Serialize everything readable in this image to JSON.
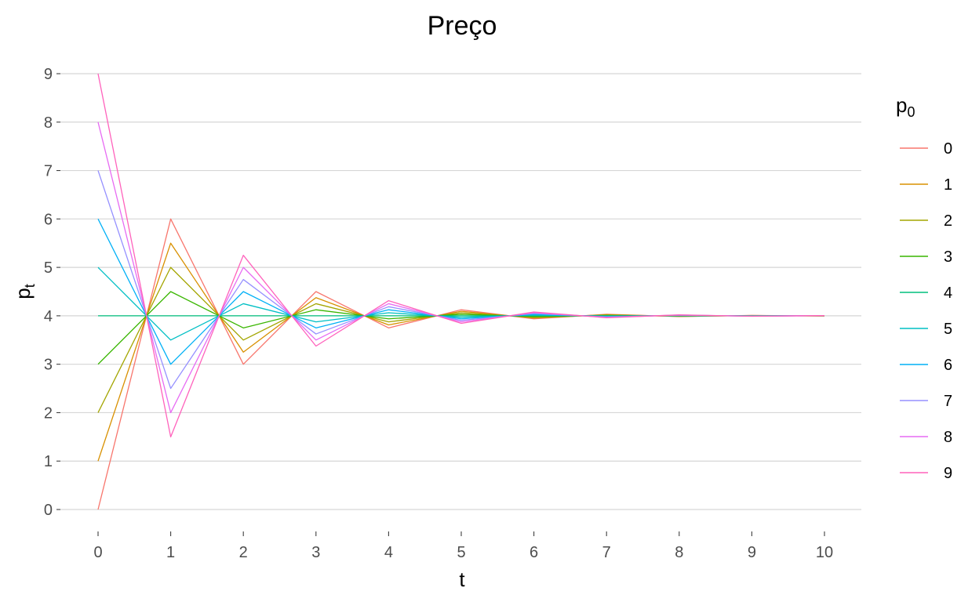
{
  "chart_data": {
    "type": "line",
    "title": "Preço",
    "xlabel": "t",
    "ylabel": {
      "main": "p",
      "sub": "t"
    },
    "xlim": [
      0,
      10
    ],
    "ylim": [
      0,
      9
    ],
    "x_ticks": [
      0,
      1,
      2,
      3,
      4,
      5,
      6,
      7,
      8,
      9,
      10
    ],
    "y_ticks": [
      0,
      1,
      2,
      3,
      4,
      5,
      6,
      7,
      8,
      9
    ],
    "grid": "horizontal-major",
    "legend": {
      "title": {
        "main": "p",
        "sub": "0"
      },
      "placement": "right"
    },
    "x": [
      0,
      1,
      2,
      3,
      4,
      5,
      6,
      7,
      8,
      9,
      10
    ],
    "series": [
      {
        "name": "0",
        "color": "#F8766D",
        "values": [
          0,
          6,
          3,
          4.5,
          3.75,
          4.125,
          3.9375,
          4.03125,
          3.984375,
          4.0078125,
          3.99609375
        ]
      },
      {
        "name": "1",
        "color": "#D89000",
        "values": [
          1,
          5.5,
          3.25,
          4.375,
          3.8125,
          4.09375,
          3.953125,
          4.0234375,
          3.98828125,
          4.005859375,
          3.9970703125
        ]
      },
      {
        "name": "2",
        "color": "#A3A500",
        "values": [
          2,
          5,
          3.5,
          4.25,
          3.875,
          4.0625,
          3.96875,
          4.015625,
          3.9921875,
          4.00390625,
          3.998046875
        ]
      },
      {
        "name": "3",
        "color": "#39B600",
        "values": [
          3,
          4.5,
          3.75,
          4.125,
          3.9375,
          4.03125,
          3.984375,
          4.0078125,
          3.99609375,
          4.001953125,
          3.9990234375
        ]
      },
      {
        "name": "4",
        "color": "#00BF7D",
        "values": [
          4,
          4,
          4,
          4,
          4,
          4,
          4,
          4,
          4,
          4,
          4
        ]
      },
      {
        "name": "5",
        "color": "#00BFC4",
        "values": [
          5,
          3.5,
          4.25,
          3.875,
          4.0625,
          3.96875,
          4.015625,
          3.9921875,
          4.00390625,
          3.998046875,
          4.0009765625
        ]
      },
      {
        "name": "6",
        "color": "#00B0F6",
        "values": [
          6,
          3,
          4.5,
          3.75,
          4.125,
          3.9375,
          4.03125,
          3.984375,
          4.0078125,
          3.99609375,
          4.001953125
        ]
      },
      {
        "name": "7",
        "color": "#9590FF",
        "values": [
          7,
          2.5,
          4.75,
          3.625,
          4.1875,
          3.90625,
          4.046875,
          3.9765625,
          4.01171875,
          3.994140625,
          4.0029296875
        ]
      },
      {
        "name": "8",
        "color": "#E76BF3",
        "values": [
          8,
          2,
          5,
          3.5,
          4.25,
          3.875,
          4.0625,
          3.96875,
          4.015625,
          3.9921875,
          4.00390625
        ]
      },
      {
        "name": "9",
        "color": "#FF62BC",
        "values": [
          9,
          1.5,
          5.25,
          3.375,
          4.3125,
          3.84375,
          4.078125,
          3.9609375,
          4.01953125,
          3.990234375,
          4.0048828125
        ]
      }
    ]
  }
}
